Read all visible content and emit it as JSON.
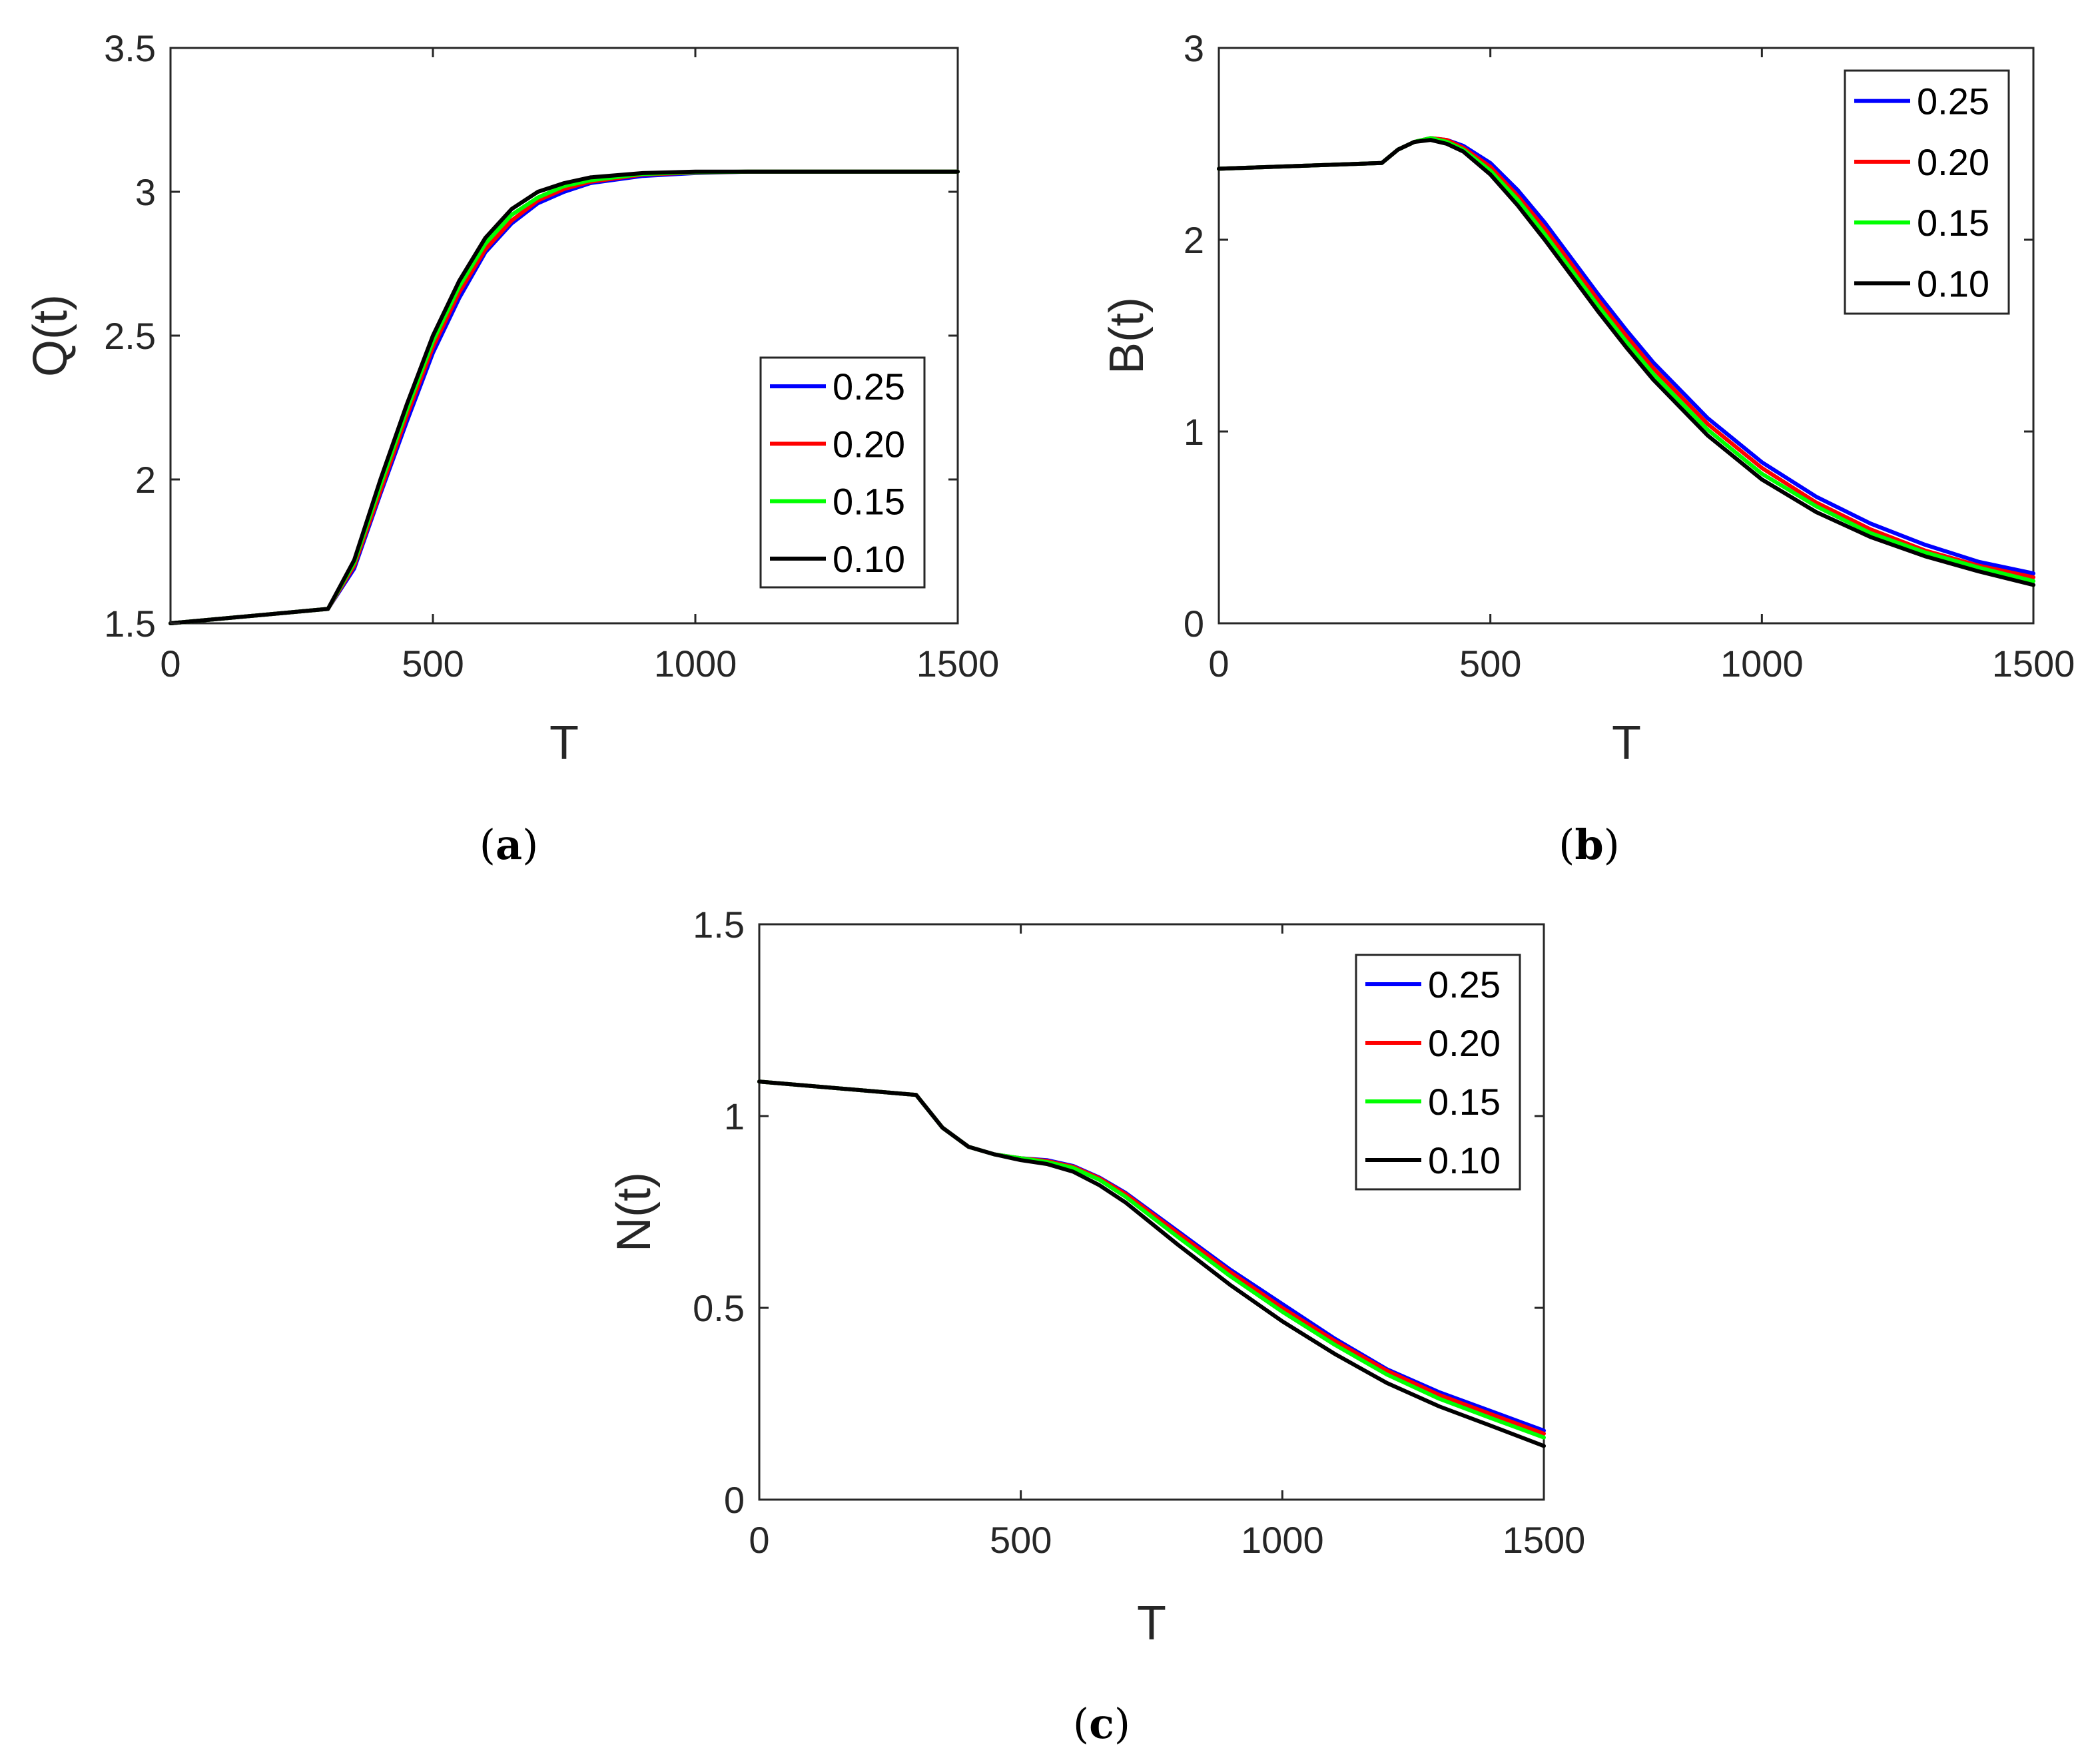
{
  "chart_data": [
    {
      "type": "line",
      "caption": "(a)",
      "caption_letter": "a",
      "ylabel": "Q(t)",
      "xlabel": "T",
      "xlim": [
        0,
        1500
      ],
      "ylim": [
        1.5,
        3.5
      ],
      "xticks": [
        0,
        500,
        1000,
        1500
      ],
      "yticks": [
        1.5,
        2,
        2.5,
        3,
        3.5
      ],
      "ytick_labels": [
        "1.5",
        "2",
        "2.5",
        "3",
        "3.5"
      ],
      "legend_position": "bottom-right",
      "series": [
        {
          "name": "0.25",
          "color": "#0000ff",
          "x": [
            0,
            300,
            350,
            400,
            450,
            500,
            550,
            600,
            650,
            700,
            750,
            800,
            900,
            1000,
            1100,
            1200,
            1500
          ],
          "y": [
            1.5,
            1.55,
            1.69,
            1.95,
            2.2,
            2.44,
            2.63,
            2.79,
            2.89,
            2.96,
            3.0,
            3.03,
            3.055,
            3.065,
            3.07,
            3.07,
            3.07
          ]
        },
        {
          "name": "0.20",
          "color": "#ff0000",
          "x": [
            0,
            300,
            350,
            400,
            450,
            500,
            550,
            600,
            650,
            700,
            750,
            800,
            900,
            1000,
            1100,
            1200,
            1500
          ],
          "y": [
            1.5,
            1.55,
            1.7,
            1.96,
            2.22,
            2.46,
            2.65,
            2.8,
            2.9,
            2.97,
            3.01,
            3.035,
            3.06,
            3.067,
            3.07,
            3.07,
            3.07
          ]
        },
        {
          "name": "0.15",
          "color": "#00ff00",
          "x": [
            0,
            300,
            350,
            400,
            450,
            500,
            550,
            600,
            650,
            700,
            750,
            800,
            900,
            1000,
            1100,
            1200,
            1500
          ],
          "y": [
            1.5,
            1.55,
            1.71,
            1.98,
            2.24,
            2.48,
            2.67,
            2.82,
            2.92,
            2.98,
            3.02,
            3.04,
            3.062,
            3.068,
            3.07,
            3.07,
            3.07
          ]
        },
        {
          "name": "0.10",
          "color": "#000000",
          "x": [
            0,
            300,
            350,
            400,
            450,
            500,
            550,
            600,
            650,
            700,
            750,
            800,
            900,
            1000,
            1100,
            1200,
            1500
          ],
          "y": [
            1.5,
            1.55,
            1.72,
            2.0,
            2.26,
            2.5,
            2.69,
            2.84,
            2.94,
            3.0,
            3.03,
            3.05,
            3.065,
            3.07,
            3.07,
            3.07,
            3.07
          ]
        }
      ]
    },
    {
      "type": "line",
      "caption": "(b)",
      "caption_letter": "b",
      "ylabel": "B(t)",
      "xlabel": "T",
      "xlim": [
        0,
        1500
      ],
      "ylim": [
        0,
        3
      ],
      "xticks": [
        0,
        500,
        1000,
        1500
      ],
      "yticks": [
        0,
        1,
        2,
        3
      ],
      "ytick_labels": [
        "0",
        "1",
        "2",
        "3"
      ],
      "legend_position": "top-right",
      "series": [
        {
          "name": "0.25",
          "color": "#0000ff",
          "x": [
            0,
            300,
            330,
            360,
            390,
            420,
            450,
            500,
            550,
            600,
            650,
            700,
            750,
            800,
            900,
            1000,
            1100,
            1200,
            1300,
            1400,
            1500
          ],
          "y": [
            2.37,
            2.4,
            2.47,
            2.51,
            2.53,
            2.52,
            2.49,
            2.4,
            2.26,
            2.09,
            1.9,
            1.71,
            1.53,
            1.36,
            1.07,
            0.84,
            0.66,
            0.52,
            0.41,
            0.32,
            0.26
          ]
        },
        {
          "name": "0.20",
          "color": "#ff0000",
          "x": [
            0,
            300,
            330,
            360,
            390,
            420,
            450,
            500,
            550,
            600,
            650,
            700,
            750,
            800,
            900,
            1000,
            1100,
            1200,
            1300,
            1400,
            1500
          ],
          "y": [
            2.37,
            2.4,
            2.47,
            2.51,
            2.53,
            2.52,
            2.48,
            2.38,
            2.23,
            2.06,
            1.87,
            1.68,
            1.5,
            1.33,
            1.04,
            0.81,
            0.63,
            0.49,
            0.38,
            0.3,
            0.24
          ]
        },
        {
          "name": "0.15",
          "color": "#00ff00",
          "x": [
            0,
            300,
            330,
            360,
            390,
            420,
            450,
            500,
            550,
            600,
            650,
            700,
            750,
            800,
            900,
            1000,
            1100,
            1200,
            1300,
            1400,
            1500
          ],
          "y": [
            2.37,
            2.4,
            2.47,
            2.51,
            2.53,
            2.51,
            2.47,
            2.36,
            2.21,
            2.03,
            1.84,
            1.65,
            1.47,
            1.3,
            1.01,
            0.78,
            0.61,
            0.47,
            0.37,
            0.29,
            0.22
          ]
        },
        {
          "name": "0.10",
          "color": "#000000",
          "x": [
            0,
            300,
            330,
            360,
            390,
            420,
            450,
            500,
            550,
            600,
            650,
            700,
            750,
            800,
            900,
            1000,
            1100,
            1200,
            1300,
            1400,
            1500
          ],
          "y": [
            2.37,
            2.4,
            2.47,
            2.51,
            2.52,
            2.5,
            2.46,
            2.34,
            2.18,
            2.0,
            1.81,
            1.62,
            1.44,
            1.27,
            0.98,
            0.75,
            0.58,
            0.45,
            0.35,
            0.27,
            0.2
          ]
        }
      ]
    },
    {
      "type": "line",
      "caption": "(c)",
      "caption_letter": "c",
      "ylabel": "N(t)",
      "xlabel": "T",
      "xlim": [
        0,
        1500
      ],
      "ylim": [
        0,
        1.5
      ],
      "xticks": [
        0,
        500,
        1000,
        1500
      ],
      "yticks": [
        0,
        0.5,
        1,
        1.5
      ],
      "ytick_labels": [
        "0",
        "0.5",
        "1",
        "1.5"
      ],
      "legend_position": "top-right",
      "series": [
        {
          "name": "0.25",
          "color": "#0000ff",
          "x": [
            0,
            300,
            350,
            400,
            450,
            500,
            550,
            600,
            650,
            700,
            800,
            900,
            1000,
            1100,
            1200,
            1300,
            1400,
            1500
          ],
          "y": [
            1.09,
            1.055,
            0.97,
            0.92,
            0.9,
            0.89,
            0.885,
            0.87,
            0.84,
            0.8,
            0.7,
            0.6,
            0.51,
            0.42,
            0.34,
            0.28,
            0.23,
            0.18
          ]
        },
        {
          "name": "0.20",
          "color": "#ff0000",
          "x": [
            0,
            300,
            350,
            400,
            450,
            500,
            550,
            600,
            650,
            700,
            800,
            900,
            1000,
            1100,
            1200,
            1300,
            1400,
            1500
          ],
          "y": [
            1.09,
            1.055,
            0.97,
            0.92,
            0.9,
            0.89,
            0.883,
            0.868,
            0.838,
            0.797,
            0.695,
            0.594,
            0.5,
            0.414,
            0.336,
            0.273,
            0.222,
            0.172
          ]
        },
        {
          "name": "0.15",
          "color": "#00ff00",
          "x": [
            0,
            300,
            350,
            400,
            450,
            500,
            550,
            600,
            650,
            700,
            800,
            900,
            1000,
            1100,
            1200,
            1300,
            1400,
            1500
          ],
          "y": [
            1.09,
            1.055,
            0.97,
            0.92,
            0.9,
            0.89,
            0.88,
            0.865,
            0.834,
            0.79,
            0.685,
            0.583,
            0.49,
            0.404,
            0.326,
            0.263,
            0.212,
            0.162
          ]
        },
        {
          "name": "0.10",
          "color": "#000000",
          "x": [
            0,
            300,
            350,
            400,
            450,
            500,
            550,
            600,
            650,
            700,
            800,
            900,
            1000,
            1100,
            1200,
            1300,
            1400,
            1500
          ],
          "y": [
            1.09,
            1.055,
            0.97,
            0.92,
            0.9,
            0.885,
            0.875,
            0.855,
            0.82,
            0.775,
            0.665,
            0.56,
            0.465,
            0.38,
            0.304,
            0.243,
            0.192,
            0.14
          ]
        }
      ]
    }
  ]
}
